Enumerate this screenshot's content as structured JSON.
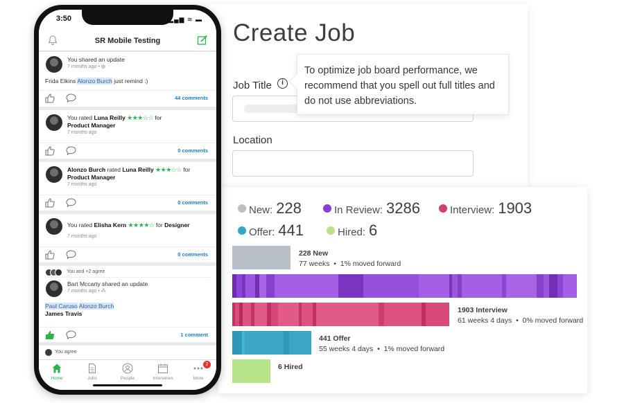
{
  "job_form": {
    "heading": "Create Job",
    "job_title_label": "Job Title",
    "info_icon": "i",
    "tooltip": "To optimize job board performance, we recommend that you spell out full titles and do not use abbreviations.",
    "location_label": "Location"
  },
  "pipeline": {
    "stats": [
      {
        "label": "New:",
        "value": "228",
        "color": "#b7c0c8"
      },
      {
        "label": "In Review:",
        "value": "3286",
        "color": "#8a3fd1"
      },
      {
        "label": "Interview:",
        "value": "1903",
        "color": "#d43f72"
      },
      {
        "label": "Offer:",
        "value": "441",
        "color": "#36a6c6"
      },
      {
        "label": "Hired:",
        "value": "6",
        "color": "#b7e38a"
      }
    ],
    "bars": [
      {
        "title": "228 New",
        "detail": "77 weeks",
        "moved": "1% moved forward",
        "color": "#b7c0c8"
      },
      {
        "title": "",
        "detail": "",
        "moved": "",
        "color": "#8a3fd1"
      },
      {
        "title": "1903 Interview",
        "detail": "61 weeks 4 days",
        "moved": "0% moved forward",
        "color": "#d43f72"
      },
      {
        "title": "441 Offer",
        "detail": "55 weeks 4 days",
        "moved": "1% moved forward",
        "color": "#36a6c6"
      },
      {
        "title": "6 Hired",
        "detail": "",
        "moved": "",
        "color": "#b7e38a"
      }
    ],
    "bullet": "•"
  },
  "phone": {
    "time": "3:50",
    "status_icons": "▂▄▆ ≋ ▬",
    "app_title": "SR Mobile Testing",
    "posts": [
      {
        "line1": "You shared an update",
        "meta": "7 months ago • ",
        "body_name": "Frida Elkins",
        "body_mention": "Alonzo Burch",
        "body_rest": "just remind :)",
        "comments": "44 comments"
      },
      {
        "line1a": "You rated ",
        "name": "Luna Reilly",
        "stars": "★★★☆☆",
        "line1b": " for",
        "role": "Product Manager",
        "meta": "7 months ago",
        "comments": "0 comments"
      },
      {
        "who": "Alonzo Burch",
        "line1a": " rated ",
        "name": "Luna Reilly",
        "stars": "★★★☆☆",
        "line1b": " for",
        "role": "Product Manager",
        "meta": "7 months ago",
        "comments": "0 comments"
      },
      {
        "line1a": "You rated ",
        "name": "Elisha Kern",
        "stars": "★★★★☆",
        "line1b": " for ",
        "role": "Designer",
        "meta": "7 months ago",
        "comments": "0 comments"
      },
      {
        "agree": "You and +2 agree",
        "line1": "Bart Mccarty shared an update",
        "meta": "7 months ago • ",
        "mention1": "Paul Caruso",
        "mention2": "Alonzo Burch",
        "name2": "James Travis",
        "comments": "1 comment"
      },
      {
        "agree": "You agree"
      }
    ],
    "tabs": [
      {
        "label": "Home"
      },
      {
        "label": "Jobs"
      },
      {
        "label": "People"
      },
      {
        "label": "Interviews"
      },
      {
        "label": "More",
        "badge": "2"
      }
    ]
  }
}
